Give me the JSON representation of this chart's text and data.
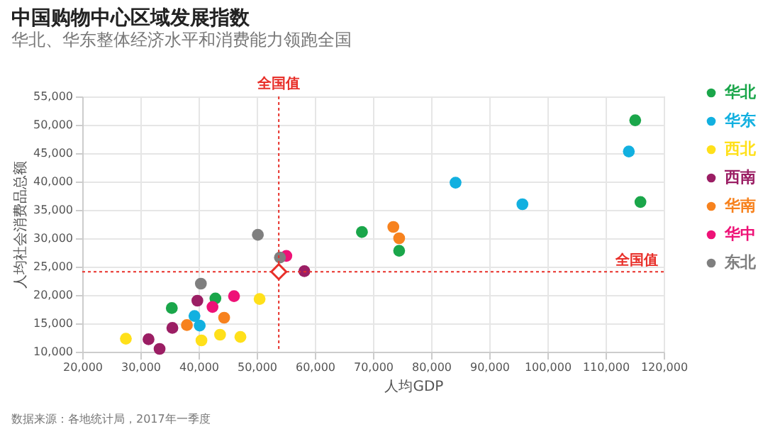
{
  "chart_data": {
    "type": "scatter",
    "title": "中国购物中心区域发展指数",
    "subtitle": "华北、华东整体经济水平和消费能力领跑全国",
    "xlabel": "人均GDP",
    "ylabel": "人均社会消费品总额",
    "xlim": [
      20000,
      120000
    ],
    "xticks": [
      {
        "value": 20000,
        "label": "20,000"
      },
      {
        "value": 30000,
        "label": "30,000"
      },
      {
        "value": 40000,
        "label": "40,000"
      },
      {
        "value": 50000,
        "label": "50,000"
      },
      {
        "value": 60000,
        "label": "60,000"
      },
      {
        "value": 70000,
        "label": "70,000"
      },
      {
        "value": 80000,
        "label": "80,000"
      },
      {
        "value": 90000,
        "label": "90,000"
      },
      {
        "value": 100000,
        "label": "100,000"
      },
      {
        "value": 110000,
        "label": "110,000"
      },
      {
        "value": 120000,
        "label": "120,000"
      }
    ],
    "ylim": [
      10000,
      55000
    ],
    "yticks": [
      {
        "value": 10000,
        "label": "10,000"
      },
      {
        "value": 15000,
        "label": "15,000"
      },
      {
        "value": 20000,
        "label": "20,000"
      },
      {
        "value": 25000,
        "label": "25,000"
      },
      {
        "value": 30000,
        "label": "30,000"
      },
      {
        "value": 35000,
        "label": "35,000"
      },
      {
        "value": 40000,
        "label": "40,000"
      },
      {
        "value": 45000,
        "label": "45,000"
      },
      {
        "value": 50000,
        "label": "50,000"
      },
      {
        "value": 55000,
        "label": "55,000"
      }
    ],
    "grid": true,
    "legend": "top right",
    "marker": "circle",
    "series": [
      {
        "name": "华北",
        "color": "#1aa64a",
        "x": [
          35400,
          42900,
          68100,
          74500,
          115100,
          116000
        ],
        "values": [
          17700,
          19400,
          31100,
          27800,
          50800,
          36400
        ]
      },
      {
        "name": "华东",
        "color": "#12b0e0",
        "x": [
          39300,
          40200,
          84200,
          95700,
          114000
        ],
        "values": [
          16300,
          14600,
          39800,
          36000,
          45300
        ]
      },
      {
        "name": "西北",
        "color": "#ffe01a",
        "x": [
          27500,
          40500,
          43700,
          47200,
          50500
        ],
        "values": [
          12300,
          12000,
          13000,
          12600,
          19300
        ]
      },
      {
        "name": "西南",
        "color": "#9b1e64",
        "x": [
          31400,
          33300,
          35500,
          39800,
          58200
        ],
        "values": [
          12200,
          10500,
          14200,
          19000,
          24200
        ]
      },
      {
        "name": "华南",
        "color": "#f7821e",
        "x": [
          38000,
          44400,
          73500,
          74500
        ],
        "values": [
          14700,
          16000,
          32000,
          30000
        ]
      },
      {
        "name": "华中",
        "color": "#ee1277",
        "x": [
          42400,
          46100,
          55100
        ],
        "values": [
          17900,
          19800,
          26900
        ]
      },
      {
        "name": "东北",
        "color": "#7f7f7f",
        "x": [
          40400,
          50200,
          54000
        ],
        "values": [
          22000,
          30600,
          26600
        ]
      },
      {
        "type": "scatter",
        "marker": "diamond",
        "color": "#e8302a",
        "x": [
          53800
        ],
        "values": [
          24100
        ]
      }
    ],
    "ref_lines": [
      {
        "axis": "x",
        "value": 53800,
        "label": "全国值",
        "color": "#e8302a",
        "line_style": "dotted"
      },
      {
        "axis": "y",
        "value": 24100,
        "label": "全国值",
        "color": "#e8302a",
        "line_style": "dotted"
      }
    ],
    "annotations": [
      "数据来源：各地统计局，2017年一季度"
    ]
  }
}
